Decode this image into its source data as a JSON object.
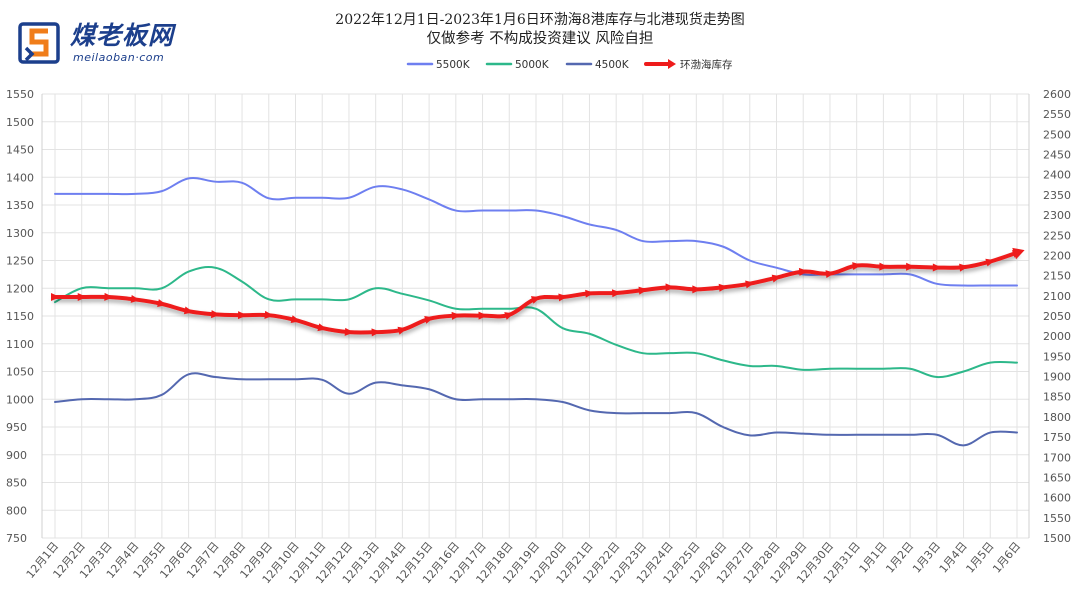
{
  "logo": {
    "name_cn": "煤老板网",
    "name_en": "meilaoban·com"
  },
  "chart_data": {
    "type": "line",
    "title": "2022年12月1日-2023年1月6日环渤海8港库存与北港现货走势图",
    "subtitle": "仅做参考 不构成投资建议 风险自担",
    "legend_position": "top-center",
    "grid": true,
    "categories": [
      "12月1日",
      "12月2日",
      "12月3日",
      "12月4日",
      "12月5日",
      "12月6日",
      "12月7日",
      "12月8日",
      "12月9日",
      "12月10日",
      "12月11日",
      "12月12日",
      "12月13日",
      "12月14日",
      "12月15日",
      "12月16日",
      "12月17日",
      "12月18日",
      "12月19日",
      "12月20日",
      "12月21日",
      "12月22日",
      "12月23日",
      "12月24日",
      "12月25日",
      "12月26日",
      "12月27日",
      "12月28日",
      "12月29日",
      "12月30日",
      "12月31日",
      "1月1日",
      "1月2日",
      "1月3日",
      "1月4日",
      "1月5日",
      "1月6日"
    ],
    "y_left": {
      "min": 750,
      "max": 1550,
      "step": 50,
      "ticks": [
        "750",
        "800",
        "850",
        "900",
        "950",
        "1000",
        "1050",
        "1100",
        "1150",
        "1200",
        "1250",
        "1300",
        "1350",
        "1400",
        "1450",
        "1500",
        "1550"
      ]
    },
    "y_right": {
      "min": 1500,
      "max": 2600,
      "step": 50,
      "ticks": [
        "1500",
        "1550",
        "1600",
        "1650",
        "1700",
        "1750",
        "1800",
        "1850",
        "1900",
        "1950",
        "2000",
        "2050",
        "2100",
        "2150",
        "2200",
        "2250",
        "2300",
        "2350",
        "2400",
        "2450",
        "2500",
        "2550",
        "2600"
      ]
    },
    "series": [
      {
        "name": "5500K",
        "axis": "left",
        "color": "#6e7ff0",
        "values": [
          1370,
          1370,
          1370,
          1370,
          1375,
          1398,
          1392,
          1390,
          1362,
          1363,
          1363,
          1363,
          1383,
          1378,
          1360,
          1340,
          1340,
          1340,
          1340,
          1330,
          1315,
          1305,
          1285,
          1285,
          1285,
          1275,
          1250,
          1237,
          1225,
          1225,
          1225,
          1225,
          1225,
          1208,
          1205,
          1205,
          1205
        ]
      },
      {
        "name": "5000K",
        "axis": "left",
        "color": "#2db88a",
        "values": [
          1175,
          1200,
          1200,
          1200,
          1200,
          1230,
          1237,
          1212,
          1180,
          1180,
          1180,
          1180,
          1200,
          1190,
          1178,
          1163,
          1163,
          1163,
          1163,
          1128,
          1118,
          1098,
          1083,
          1083,
          1083,
          1070,
          1060,
          1060,
          1053,
          1055,
          1055,
          1055,
          1055,
          1040,
          1050,
          1066,
          1066
        ]
      },
      {
        "name": "4500K",
        "axis": "left",
        "color": "#5468b0",
        "values": [
          995,
          1000,
          1000,
          1000,
          1008,
          1045,
          1040,
          1036,
          1036,
          1036,
          1035,
          1010,
          1030,
          1025,
          1018,
          1000,
          1000,
          1000,
          1000,
          995,
          980,
          975,
          975,
          975,
          975,
          950,
          935,
          940,
          938,
          936,
          936,
          936,
          936,
          936,
          917,
          940,
          940
        ]
      },
      {
        "name": "环渤海库存",
        "axis": "right",
        "color": "#ee1b1b",
        "values": [
          2097,
          2097,
          2097,
          2091,
          2080,
          2062,
          2054,
          2052,
          2052,
          2040,
          2020,
          2010,
          2010,
          2016,
          2043,
          2051,
          2051,
          2053,
          2093,
          2097,
          2106,
          2107,
          2114,
          2121,
          2116,
          2121,
          2130,
          2145,
          2160,
          2155,
          2175,
          2172,
          2172,
          2170,
          2171,
          2185,
          2207
        ]
      }
    ]
  }
}
